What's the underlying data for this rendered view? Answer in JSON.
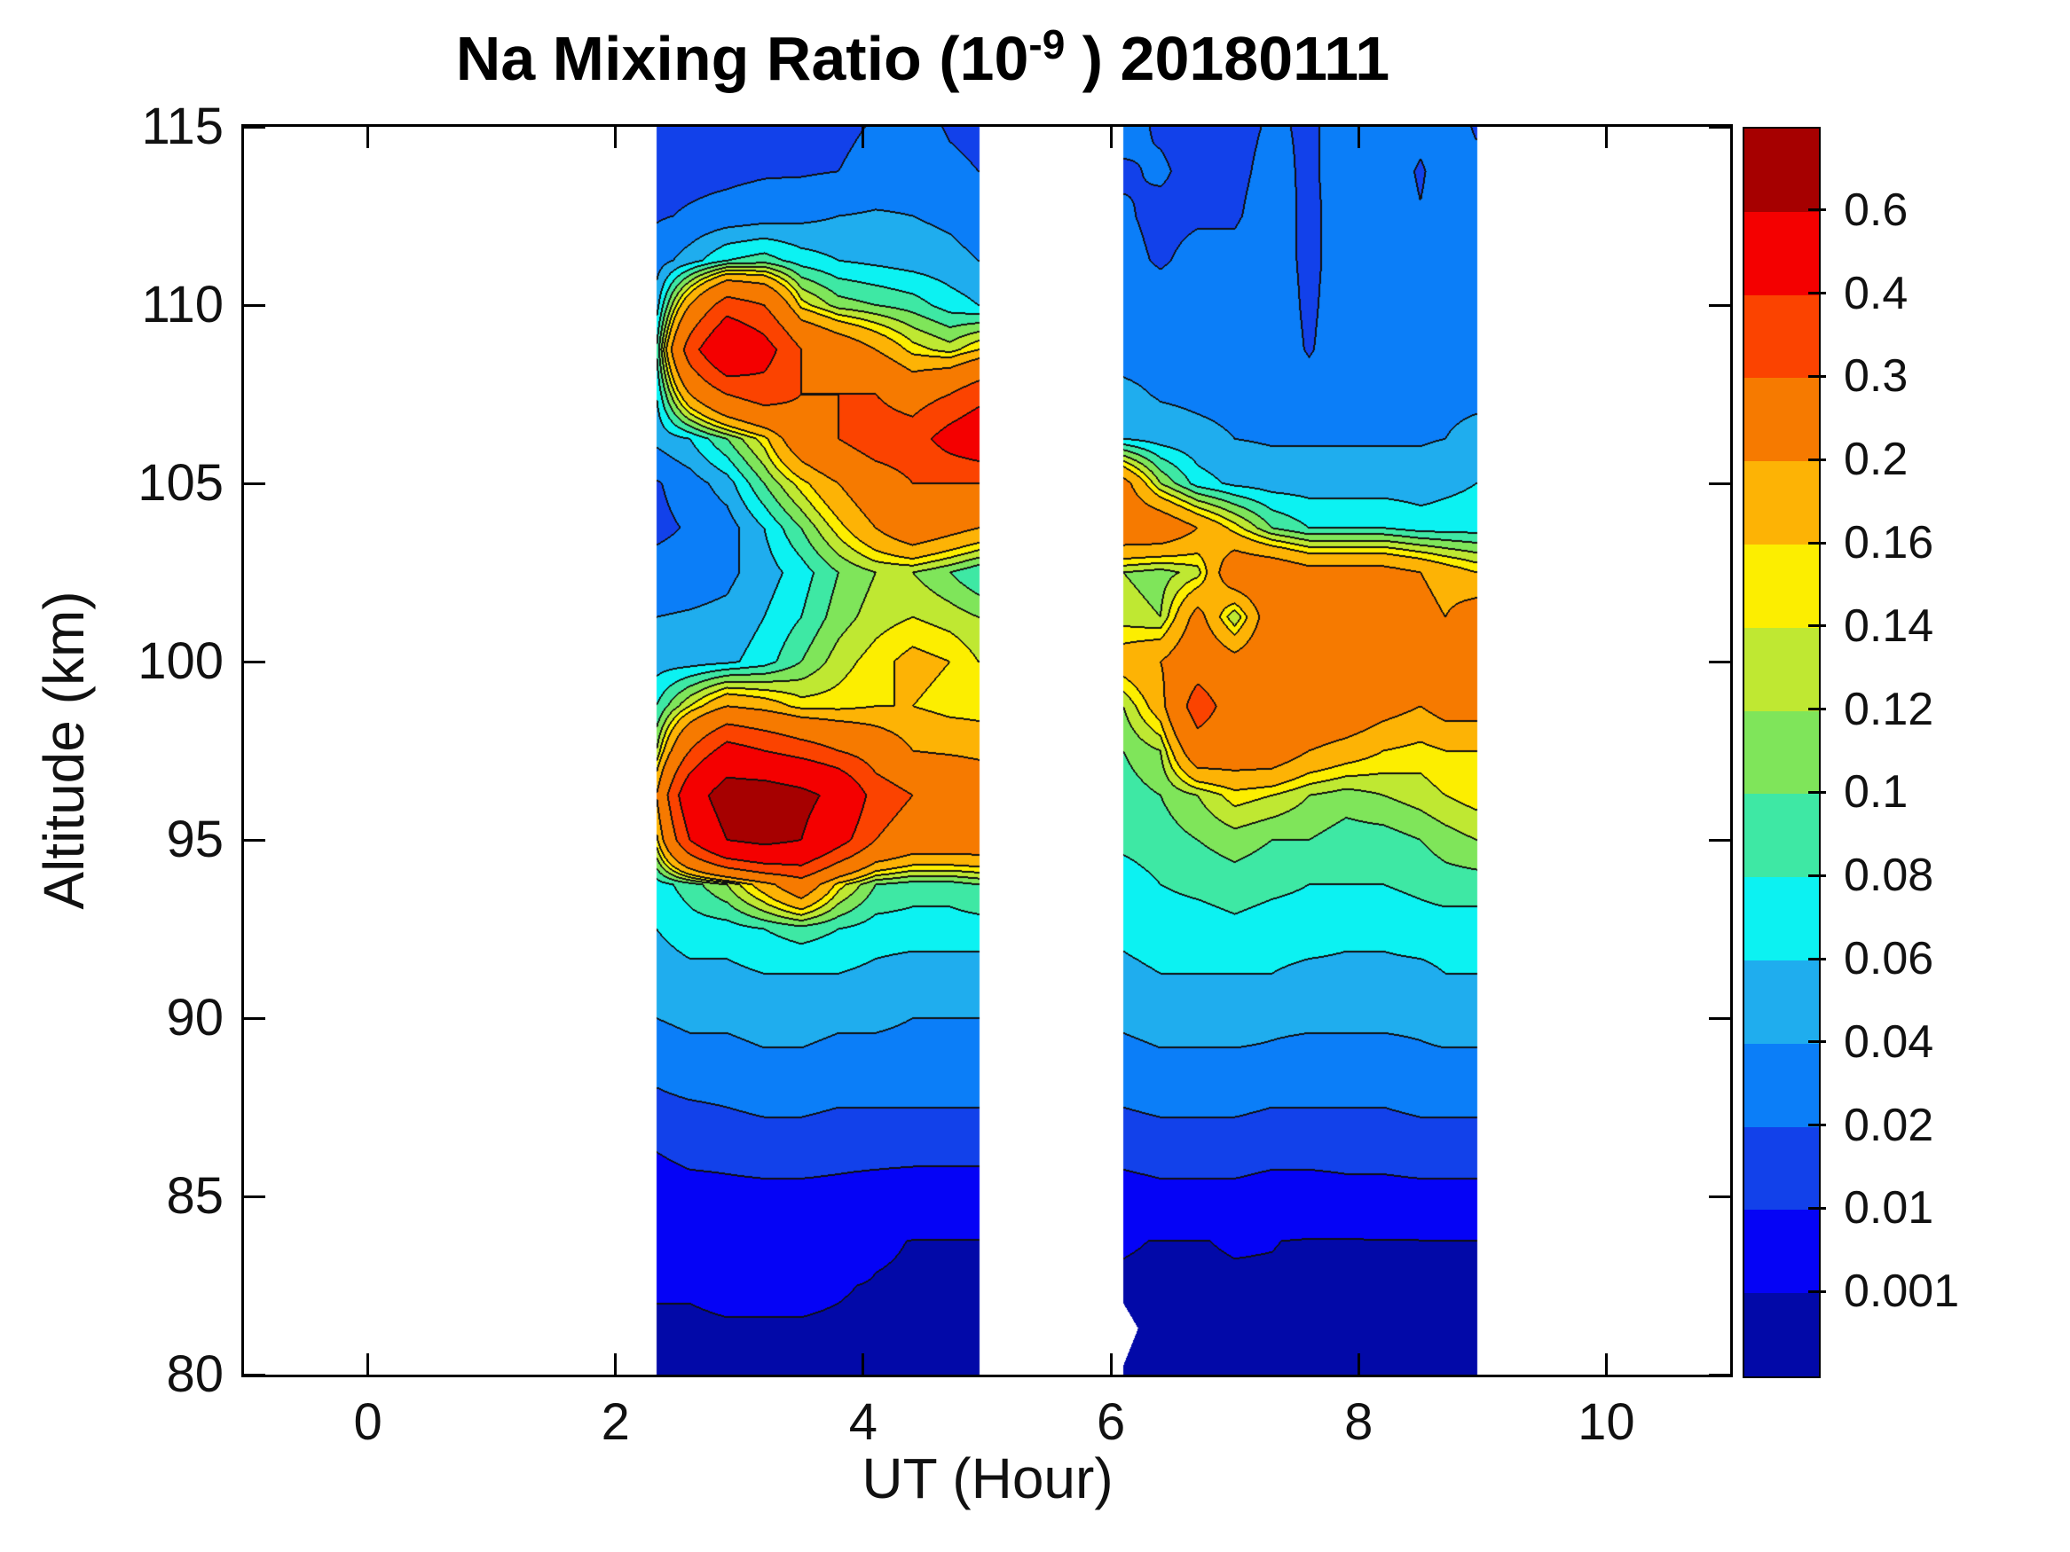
{
  "figure": {
    "background": "#ffffff"
  },
  "title": {
    "prefix": "Na Mixing Ratio (10",
    "superscript": "-9",
    "suffix": " ) 20180111"
  },
  "axes": {
    "xlabel": "UT (Hour)",
    "ylabel": "Altitude (km)",
    "xlim": [
      -1,
      11
    ],
    "ylim": [
      80,
      115
    ],
    "xticks": [
      "0",
      "2",
      "4",
      "6",
      "8",
      "10"
    ],
    "xtick_values": [
      0,
      2,
      4,
      6,
      8,
      10
    ],
    "yticks": [
      "115",
      "110",
      "105",
      "100",
      "95",
      "90",
      "85",
      "80"
    ],
    "ytick_values": [
      115,
      110,
      105,
      100,
      95,
      90,
      85,
      80
    ],
    "box": true
  },
  "colorbar": {
    "tick_labels_top_to_bottom": [
      "0.6",
      "0.4",
      "0.3",
      "0.2",
      "0.16",
      "0.14",
      "0.12",
      "0.1",
      "0.08",
      "0.06",
      "0.04",
      "0.02",
      "0.01",
      "0.001"
    ],
    "levels_low_to_high": [
      0.001,
      0.01,
      0.02,
      0.04,
      0.06,
      0.08,
      0.1,
      0.12,
      0.14,
      0.16,
      0.2,
      0.3,
      0.4,
      0.6
    ],
    "colors_low_to_high": [
      "#0209a8",
      "#0503f6",
      "#1241ea",
      "#0b7ef8",
      "#1fadee",
      "#0cf2f2",
      "#3ee8a4",
      "#7fe55a",
      "#bfe832",
      "#fcee00",
      "#fdb305",
      "#f67a00",
      "#fb4300",
      "#f40000",
      "#a60000"
    ],
    "line_color": "#101010"
  },
  "chart_data": {
    "type": "filled_contour",
    "title": "Na Mixing Ratio (10^-9 ) 20180111",
    "xlabel": "UT (Hour)",
    "ylabel": "Altitude (km)",
    "units": "10^-9 mixing ratio",
    "xlim": [
      -1,
      11
    ],
    "ylim": [
      80,
      115
    ],
    "grid": false,
    "contour_levels": [
      0.001,
      0.01,
      0.02,
      0.04,
      0.06,
      0.08,
      0.1,
      0.12,
      0.14,
      0.16,
      0.2,
      0.3,
      0.4,
      0.6
    ],
    "alt_km_top_to_bottom": [
      115,
      113.75,
      112.5,
      111.25,
      110,
      108.75,
      107.5,
      106.25,
      105,
      103.75,
      102.5,
      101.25,
      100,
      98.75,
      97.5,
      96.25,
      95,
      93.75,
      92.5,
      91.25,
      90,
      88.75,
      87.5,
      86.25,
      85,
      83.75,
      82.5,
      81.25,
      80
    ],
    "regions": [
      {
        "name": "observation-segment-1",
        "x_hours": [
          2.33,
          2.6,
          2.9,
          3.2,
          3.5,
          3.8,
          4.1,
          4.4,
          4.7,
          4.93
        ],
        "values": [
          [
            0.013,
            0.013,
            0.014,
            0.015,
            0.016,
            0.015,
            0.022,
            0.028,
            0.018,
            0.015
          ],
          [
            0.014,
            0.015,
            0.016,
            0.018,
            0.018,
            0.02,
            0.028,
            0.03,
            0.024,
            0.02
          ],
          [
            0.018,
            0.022,
            0.026,
            0.03,
            0.034,
            0.04,
            0.042,
            0.04,
            0.036,
            0.03
          ],
          [
            0.03,
            0.05,
            0.08,
            0.09,
            0.07,
            0.06,
            0.055,
            0.05,
            0.046,
            0.04
          ],
          [
            0.05,
            0.2,
            0.35,
            0.3,
            0.15,
            0.11,
            0.1,
            0.09,
            0.07,
            0.06
          ],
          [
            0.08,
            0.35,
            0.55,
            0.45,
            0.3,
            0.25,
            0.2,
            0.15,
            0.13,
            0.16
          ],
          [
            0.06,
            0.2,
            0.3,
            0.35,
            0.3,
            0.3,
            0.3,
            0.25,
            0.3,
            0.36
          ],
          [
            0.045,
            0.06,
            0.1,
            0.15,
            0.25,
            0.3,
            0.35,
            0.35,
            0.45,
            0.5
          ],
          [
            0.018,
            0.03,
            0.05,
            0.1,
            0.15,
            0.2,
            0.25,
            0.3,
            0.3,
            0.3
          ],
          [
            0.015,
            0.022,
            0.03,
            0.06,
            0.1,
            0.15,
            0.2,
            0.25,
            0.22,
            0.2
          ],
          [
            0.028,
            0.03,
            0.035,
            0.05,
            0.07,
            0.1,
            0.12,
            0.12,
            0.1,
            0.08
          ],
          [
            0.04,
            0.042,
            0.045,
            0.06,
            0.08,
            0.11,
            0.13,
            0.14,
            0.13,
            0.12
          ],
          [
            0.05,
            0.05,
            0.055,
            0.07,
            0.1,
            0.13,
            0.15,
            0.17,
            0.16,
            0.14
          ],
          [
            0.08,
            0.14,
            0.2,
            0.18,
            0.15,
            0.15,
            0.16,
            0.16,
            0.15,
            0.15
          ],
          [
            0.12,
            0.3,
            0.45,
            0.4,
            0.35,
            0.3,
            0.25,
            0.2,
            0.19,
            0.18
          ],
          [
            0.2,
            0.5,
            0.7,
            0.7,
            0.65,
            0.55,
            0.35,
            0.3,
            0.3,
            0.28
          ],
          [
            0.15,
            0.4,
            0.6,
            0.65,
            0.6,
            0.45,
            0.3,
            0.25,
            0.25,
            0.25
          ],
          [
            0.07,
            0.09,
            0.12,
            0.18,
            0.25,
            0.15,
            0.1,
            0.09,
            0.09,
            0.1
          ],
          [
            0.06,
            0.07,
            0.07,
            0.08,
            0.09,
            0.08,
            0.07,
            0.07,
            0.07,
            0.07
          ],
          [
            0.05,
            0.055,
            0.055,
            0.06,
            0.06,
            0.06,
            0.055,
            0.05,
            0.05,
            0.05
          ],
          [
            0.04,
            0.045,
            0.045,
            0.05,
            0.05,
            0.045,
            0.045,
            0.04,
            0.04,
            0.04
          ],
          [
            0.025,
            0.03,
            0.03,
            0.035,
            0.035,
            0.03,
            0.03,
            0.03,
            0.03,
            0.03
          ],
          [
            0.016,
            0.018,
            0.02,
            0.022,
            0.022,
            0.02,
            0.02,
            0.02,
            0.02,
            0.02
          ],
          [
            0.01,
            0.012,
            0.012,
            0.013,
            0.013,
            0.012,
            0.012,
            0.012,
            0.012,
            0.012
          ],
          [
            0.006,
            0.007,
            0.008,
            0.008,
            0.008,
            0.008,
            0.007,
            0.006,
            0.006,
            0.006
          ],
          [
            0.003,
            0.003,
            0.004,
            0.004,
            0.004,
            0.004,
            0.0015,
            0.0009,
            0.0009,
            0.0009
          ],
          [
            0.0012,
            0.0012,
            0.0015,
            0.0015,
            0.0015,
            0.0012,
            0.0008,
            0.0006,
            0.0006,
            0.0006
          ],
          [
            0.0007,
            0.0007,
            0.0008,
            0.0008,
            0.0008,
            0.0007,
            0.0005,
            0.0004,
            0.0004,
            0.0004
          ],
          [
            0.0005,
            0.0005,
            0.0005,
            0.0005,
            0.0005,
            0.0005,
            0.0003,
            0.0003,
            0.0003,
            0.0003
          ]
        ]
      },
      {
        "name": "observation-segment-2",
        "x_hours": [
          6.1,
          6.4,
          6.7,
          7.0,
          7.3,
          7.6,
          7.9,
          8.2,
          8.5,
          8.7,
          8.95
        ],
        "missing_data_notch": [
          [
            6.1,
            82.0
          ],
          [
            6.22,
            81.3
          ],
          [
            6.1,
            80.25
          ]
        ],
        "values": [
          [
            0.025,
            0.018,
            0.015,
            0.015,
            0.022,
            0.018,
            0.025,
            0.03,
            0.025,
            0.03,
            0.018
          ],
          [
            0.018,
            0.022,
            0.015,
            0.016,
            0.025,
            0.017,
            0.028,
            0.03,
            0.018,
            0.028,
            0.025
          ],
          [
            0.022,
            0.016,
            0.018,
            0.018,
            0.028,
            0.016,
            0.028,
            0.03,
            0.021,
            0.03,
            0.03
          ],
          [
            0.025,
            0.018,
            0.025,
            0.025,
            0.03,
            0.015,
            0.03,
            0.032,
            0.03,
            0.032,
            0.032
          ],
          [
            0.03,
            0.028,
            0.03,
            0.03,
            0.032,
            0.016,
            0.032,
            0.033,
            0.032,
            0.033,
            0.033
          ],
          [
            0.032,
            0.032,
            0.032,
            0.032,
            0.033,
            0.018,
            0.033,
            0.034,
            0.033,
            0.034,
            0.034
          ],
          [
            0.045,
            0.038,
            0.036,
            0.035,
            0.035,
            0.03,
            0.035,
            0.036,
            0.035,
            0.036,
            0.036
          ],
          [
            0.06,
            0.05,
            0.045,
            0.04,
            0.038,
            0.038,
            0.038,
            0.038,
            0.038,
            0.04,
            0.045
          ],
          [
            0.22,
            0.12,
            0.07,
            0.055,
            0.05,
            0.05,
            0.05,
            0.05,
            0.05,
            0.055,
            0.06
          ],
          [
            0.25,
            0.25,
            0.2,
            0.15,
            0.1,
            0.08,
            0.08,
            0.08,
            0.07,
            0.07,
            0.07
          ],
          [
            0.12,
            0.11,
            0.13,
            0.25,
            0.25,
            0.22,
            0.22,
            0.22,
            0.2,
            0.18,
            0.16
          ],
          [
            0.13,
            0.12,
            0.22,
            0.12,
            0.24,
            0.25,
            0.25,
            0.25,
            0.22,
            0.2,
            0.23
          ],
          [
            0.18,
            0.2,
            0.25,
            0.22,
            0.25,
            0.26,
            0.26,
            0.25,
            0.24,
            0.25,
            0.25
          ],
          [
            0.12,
            0.18,
            0.35,
            0.25,
            0.26,
            0.26,
            0.25,
            0.22,
            0.2,
            0.22,
            0.22
          ],
          [
            0.1,
            0.12,
            0.25,
            0.24,
            0.24,
            0.2,
            0.18,
            0.16,
            0.15,
            0.16,
            0.16
          ],
          [
            0.09,
            0.1,
            0.12,
            0.15,
            0.14,
            0.12,
            0.11,
            0.12,
            0.13,
            0.14,
            0.15
          ],
          [
            0.085,
            0.09,
            0.1,
            0.11,
            0.1,
            0.1,
            0.09,
            0.09,
            0.1,
            0.11,
            0.12
          ],
          [
            0.07,
            0.08,
            0.085,
            0.09,
            0.085,
            0.08,
            0.08,
            0.08,
            0.085,
            0.09,
            0.09
          ],
          [
            0.065,
            0.07,
            0.07,
            0.075,
            0.07,
            0.07,
            0.065,
            0.065,
            0.07,
            0.07,
            0.07
          ],
          [
            0.055,
            0.06,
            0.06,
            0.06,
            0.06,
            0.055,
            0.055,
            0.055,
            0.055,
            0.06,
            0.06
          ],
          [
            0.045,
            0.05,
            0.05,
            0.05,
            0.045,
            0.045,
            0.045,
            0.045,
            0.045,
            0.05,
            0.05
          ],
          [
            0.03,
            0.035,
            0.035,
            0.035,
            0.035,
            0.03,
            0.03,
            0.03,
            0.035,
            0.035,
            0.035
          ],
          [
            0.02,
            0.022,
            0.022,
            0.022,
            0.02,
            0.02,
            0.02,
            0.02,
            0.022,
            0.022,
            0.022
          ],
          [
            0.012,
            0.013,
            0.013,
            0.013,
            0.012,
            0.012,
            0.012,
            0.012,
            0.013,
            0.013,
            0.013
          ],
          [
            0.007,
            0.008,
            0.008,
            0.008,
            0.007,
            0.007,
            0.008,
            0.008,
            0.008,
            0.008,
            0.008
          ],
          [
            0.0012,
            0.0009,
            0.0009,
            0.0012,
            0.0011,
            0.0007,
            0.0007,
            0.0008,
            0.0009,
            0.0009,
            0.0009
          ],
          [
            0.0007,
            0.0006,
            0.0006,
            0.0007,
            0.0007,
            0.0005,
            0.0005,
            0.0005,
            0.0006,
            0.0006,
            0.0006
          ],
          [
            0.0005,
            0.0005,
            0.0005,
            0.0005,
            0.0005,
            0.0004,
            0.0004,
            0.0004,
            0.0005,
            0.0005,
            0.0005
          ],
          [
            0.0004,
            0.0004,
            0.0004,
            0.0004,
            0.0004,
            0.0003,
            0.0003,
            0.0003,
            0.0003,
            0.0003,
            0.0003
          ]
        ]
      }
    ]
  }
}
